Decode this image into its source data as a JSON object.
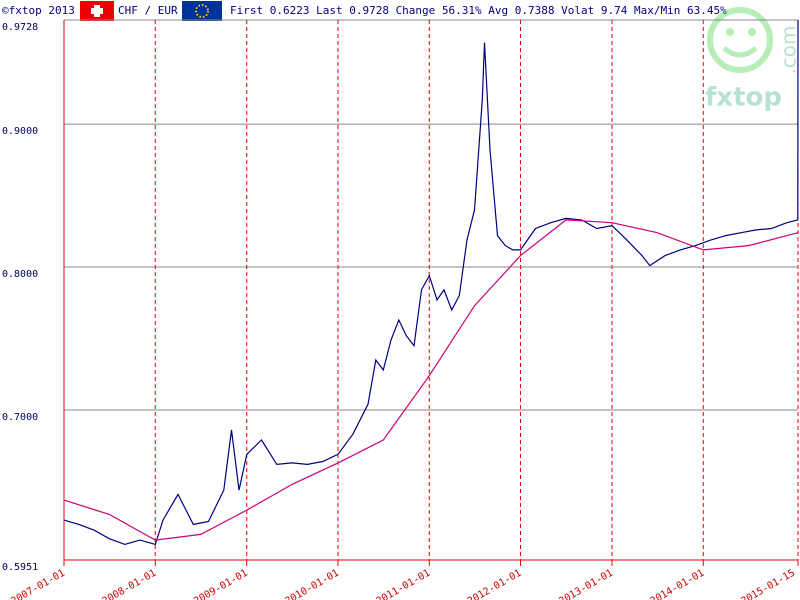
{
  "chart_data": {
    "type": "line",
    "header": {
      "copyright": "©fxtop 2013",
      "pair": "CHF / EUR",
      "stats": "First 0.6223 Last 0.9728 Change 56.31% Avg 0.7388 Volat 9.74 Max/Min 63.45%"
    },
    "logo": {
      "name": "fxtop",
      "domain": ".com"
    },
    "xlim": [
      "2007-01-01",
      "2015-01-15"
    ],
    "xticks": [
      "2007-01-01",
      "2008-01-01",
      "2009-01-01",
      "2010-01-01",
      "2011-01-01",
      "2012-01-01",
      "2013-01-01",
      "2014-01-01",
      "2015-01-15"
    ],
    "ylim": [
      0.5951,
      0.9728
    ],
    "yticks": [
      {
        "value": 0.5951,
        "label": "0.5951"
      },
      {
        "value": 0.7,
        "label": "0.7000"
      },
      {
        "value": 0.8,
        "label": "0.8000"
      },
      {
        "value": 0.9,
        "label": "0.9000"
      },
      {
        "value": 0.9728,
        "label": "0.9728"
      }
    ],
    "grid": true,
    "series": [
      {
        "color": "#000080",
        "x": [
          "2007-01-01",
          "2007-03-01",
          "2007-05-01",
          "2007-07-01",
          "2007-09-01",
          "2007-11-01",
          "2008-01-01",
          "2008-02-01",
          "2008-04-01",
          "2008-06-01",
          "2008-08-01",
          "2008-10-01",
          "2008-11-01",
          "2008-12-01",
          "2009-01-01",
          "2009-03-01",
          "2009-05-01",
          "2009-07-01",
          "2009-09-01",
          "2009-11-01",
          "2010-01-01",
          "2010-03-01",
          "2010-05-01",
          "2010-06-01",
          "2010-07-01",
          "2010-08-01",
          "2010-09-01",
          "2010-10-01",
          "2010-11-01",
          "2010-12-01",
          "2011-01-01",
          "2011-02-01",
          "2011-03-01",
          "2011-04-01",
          "2011-05-01",
          "2011-06-01",
          "2011-07-01",
          "2011-08-01",
          "2011-08-10",
          "2011-09-01",
          "2011-10-01",
          "2011-11-01",
          "2011-12-01",
          "2012-01-01",
          "2012-03-01",
          "2012-05-01",
          "2012-07-01",
          "2012-09-01",
          "2012-11-01",
          "2013-01-01",
          "2013-03-01",
          "2013-05-01",
          "2013-06-01",
          "2013-08-01",
          "2013-10-01",
          "2013-12-01",
          "2014-02-01",
          "2014-04-01",
          "2014-06-01",
          "2014-08-01",
          "2014-10-01",
          "2014-12-01",
          "2015-01-14",
          "2015-01-15"
        ],
        "values": [
          0.623,
          0.62,
          0.616,
          0.61,
          0.606,
          0.609,
          0.606,
          0.623,
          0.641,
          0.62,
          0.622,
          0.644,
          0.686,
          0.644,
          0.669,
          0.679,
          0.662,
          0.663,
          0.662,
          0.664,
          0.669,
          0.683,
          0.704,
          0.735,
          0.728,
          0.749,
          0.763,
          0.752,
          0.745,
          0.784,
          0.794,
          0.777,
          0.784,
          0.77,
          0.78,
          0.819,
          0.84,
          0.917,
          0.957,
          0.882,
          0.822,
          0.815,
          0.812,
          0.812,
          0.827,
          0.831,
          0.834,
          0.833,
          0.827,
          0.829,
          0.819,
          0.808,
          0.801,
          0.808,
          0.812,
          0.815,
          0.819,
          0.822,
          0.824,
          0.826,
          0.827,
          0.831,
          0.833,
          0.9728
        ]
      },
      {
        "color": "#cc0077",
        "x": [
          "2007-01-01",
          "2007-07-01",
          "2008-01-01",
          "2008-07-01",
          "2009-01-01",
          "2009-07-01",
          "2010-01-01",
          "2010-07-01",
          "2011-01-01",
          "2011-07-01",
          "2012-01-01",
          "2012-07-01",
          "2013-01-01",
          "2013-07-01",
          "2014-01-01",
          "2014-07-01",
          "2015-01-15"
        ],
        "values": [
          0.637,
          0.627,
          0.609,
          0.613,
          0.63,
          0.648,
          0.663,
          0.679,
          0.724,
          0.773,
          0.808,
          0.833,
          0.831,
          0.824,
          0.812,
          0.815,
          0.824
        ]
      }
    ]
  }
}
